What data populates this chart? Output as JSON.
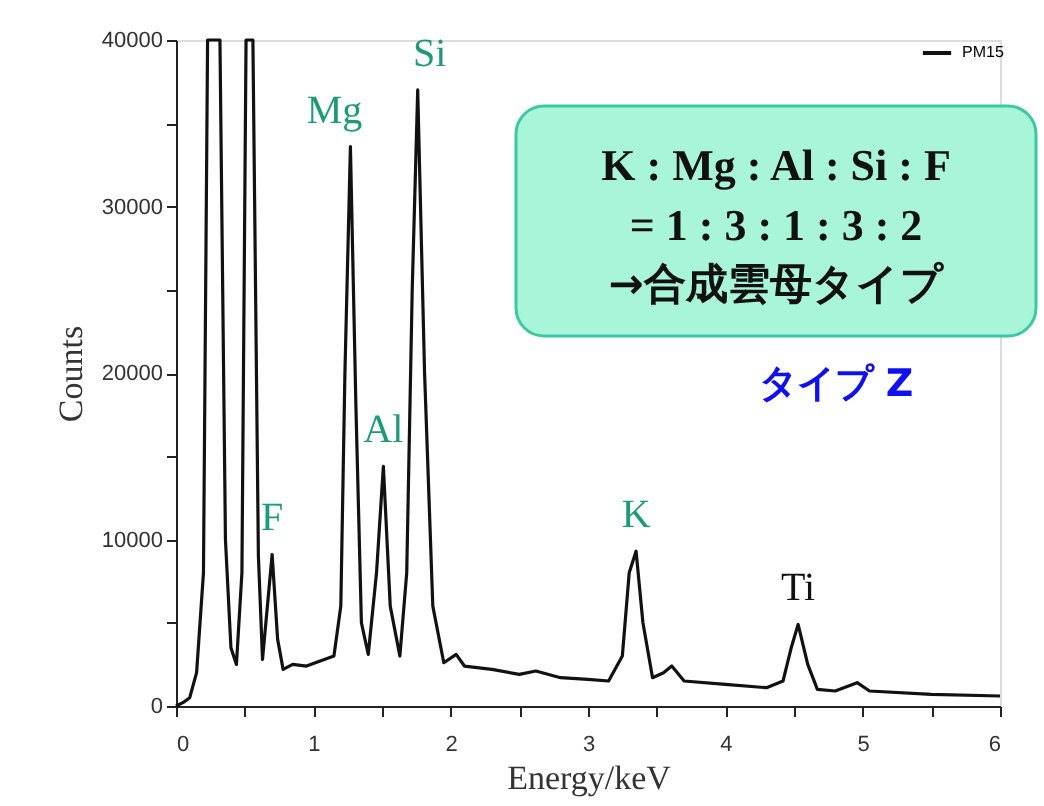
{
  "chart_data": {
    "type": "line",
    "xlabel": "Energy/keV",
    "ylabel": "Counts",
    "xlim": [
      0,
      6
    ],
    "ylim": [
      0,
      40000
    ],
    "xticks": [
      0,
      {
        "value": 0.5,
        "label": null
      },
      1,
      {
        "value": 1.5,
        "label": null
      },
      2,
      {
        "value": 2.5,
        "label": null
      },
      3,
      {
        "value": 3.5,
        "label": null
      },
      4,
      {
        "value": 4.5,
        "label": null
      },
      5,
      {
        "value": 5.5,
        "label": null
      },
      6
    ],
    "yticks": [
      0,
      {
        "value": 5000,
        "label": null
      },
      10000,
      {
        "value": 15000,
        "label": null
      },
      20000,
      {
        "value": 25000,
        "label": null
      },
      30000,
      {
        "value": 35000,
        "label": null
      },
      40000
    ],
    "grid": false,
    "legend": "top right",
    "marker": "none",
    "line_style": "solid",
    "series": [
      {
        "name": "PM15",
        "color": "#111111",
        "x": [
          0,
          0.05,
          0.1,
          0.15,
          0.2,
          0.23,
          0.32,
          0.36,
          0.4,
          0.44,
          0.48,
          0.51,
          0.56,
          0.6,
          0.63,
          0.7,
          0.74,
          0.78,
          0.85,
          0.95,
          1.05,
          1.15,
          1.2,
          1.23,
          1.27,
          1.31,
          1.35,
          1.4,
          1.46,
          1.51,
          1.56,
          1.63,
          1.68,
          1.72,
          1.76,
          1.81,
          1.87,
          1.95,
          2.04,
          2.1,
          2.3,
          2.5,
          2.62,
          2.8,
          3.0,
          3.15,
          3.25,
          3.3,
          3.35,
          3.4,
          3.47,
          3.55,
          3.61,
          3.7,
          4.0,
          4.3,
          4.42,
          4.48,
          4.53,
          4.6,
          4.67,
          4.8,
          4.96,
          5.05,
          5.5,
          6.0
        ],
        "values": [
          0,
          200,
          500,
          2000,
          8000,
          40000,
          40000,
          10000,
          3500,
          2500,
          8000,
          40000,
          40000,
          9000,
          2800,
          9100,
          4000,
          2200,
          2500,
          2400,
          2700,
          3000,
          6000,
          20000,
          33600,
          18000,
          5000,
          3100,
          8000,
          14400,
          6000,
          3000,
          8000,
          25000,
          37000,
          20000,
          6000,
          2600,
          3100,
          2400,
          2200,
          1900,
          2100,
          1700,
          1600,
          1500,
          3000,
          8000,
          9300,
          5000,
          1700,
          2000,
          2400,
          1500,
          1300,
          1100,
          1500,
          3500,
          4900,
          2500,
          1000,
          900,
          1400,
          900,
          700,
          600
        ]
      }
    ],
    "annotations": [
      {
        "text": "F",
        "x": 0.7,
        "y": 9100
      },
      {
        "text": "Mg",
        "x": 1.27,
        "y": 33600
      },
      {
        "text": "Al",
        "x": 1.51,
        "y": 14400
      },
      {
        "text": "Si",
        "x": 1.76,
        "y": 37000
      },
      {
        "text": "K",
        "x": 3.35,
        "y": 9300
      },
      {
        "text": "Ti",
        "x": 4.53,
        "y": 4900
      },
      "K : Mg : Al : Si : F",
      "= 1 : 3 : 1 : 3 : 2",
      "→合成雲母タイプ",
      "タイプ  Z"
    ]
  }
}
